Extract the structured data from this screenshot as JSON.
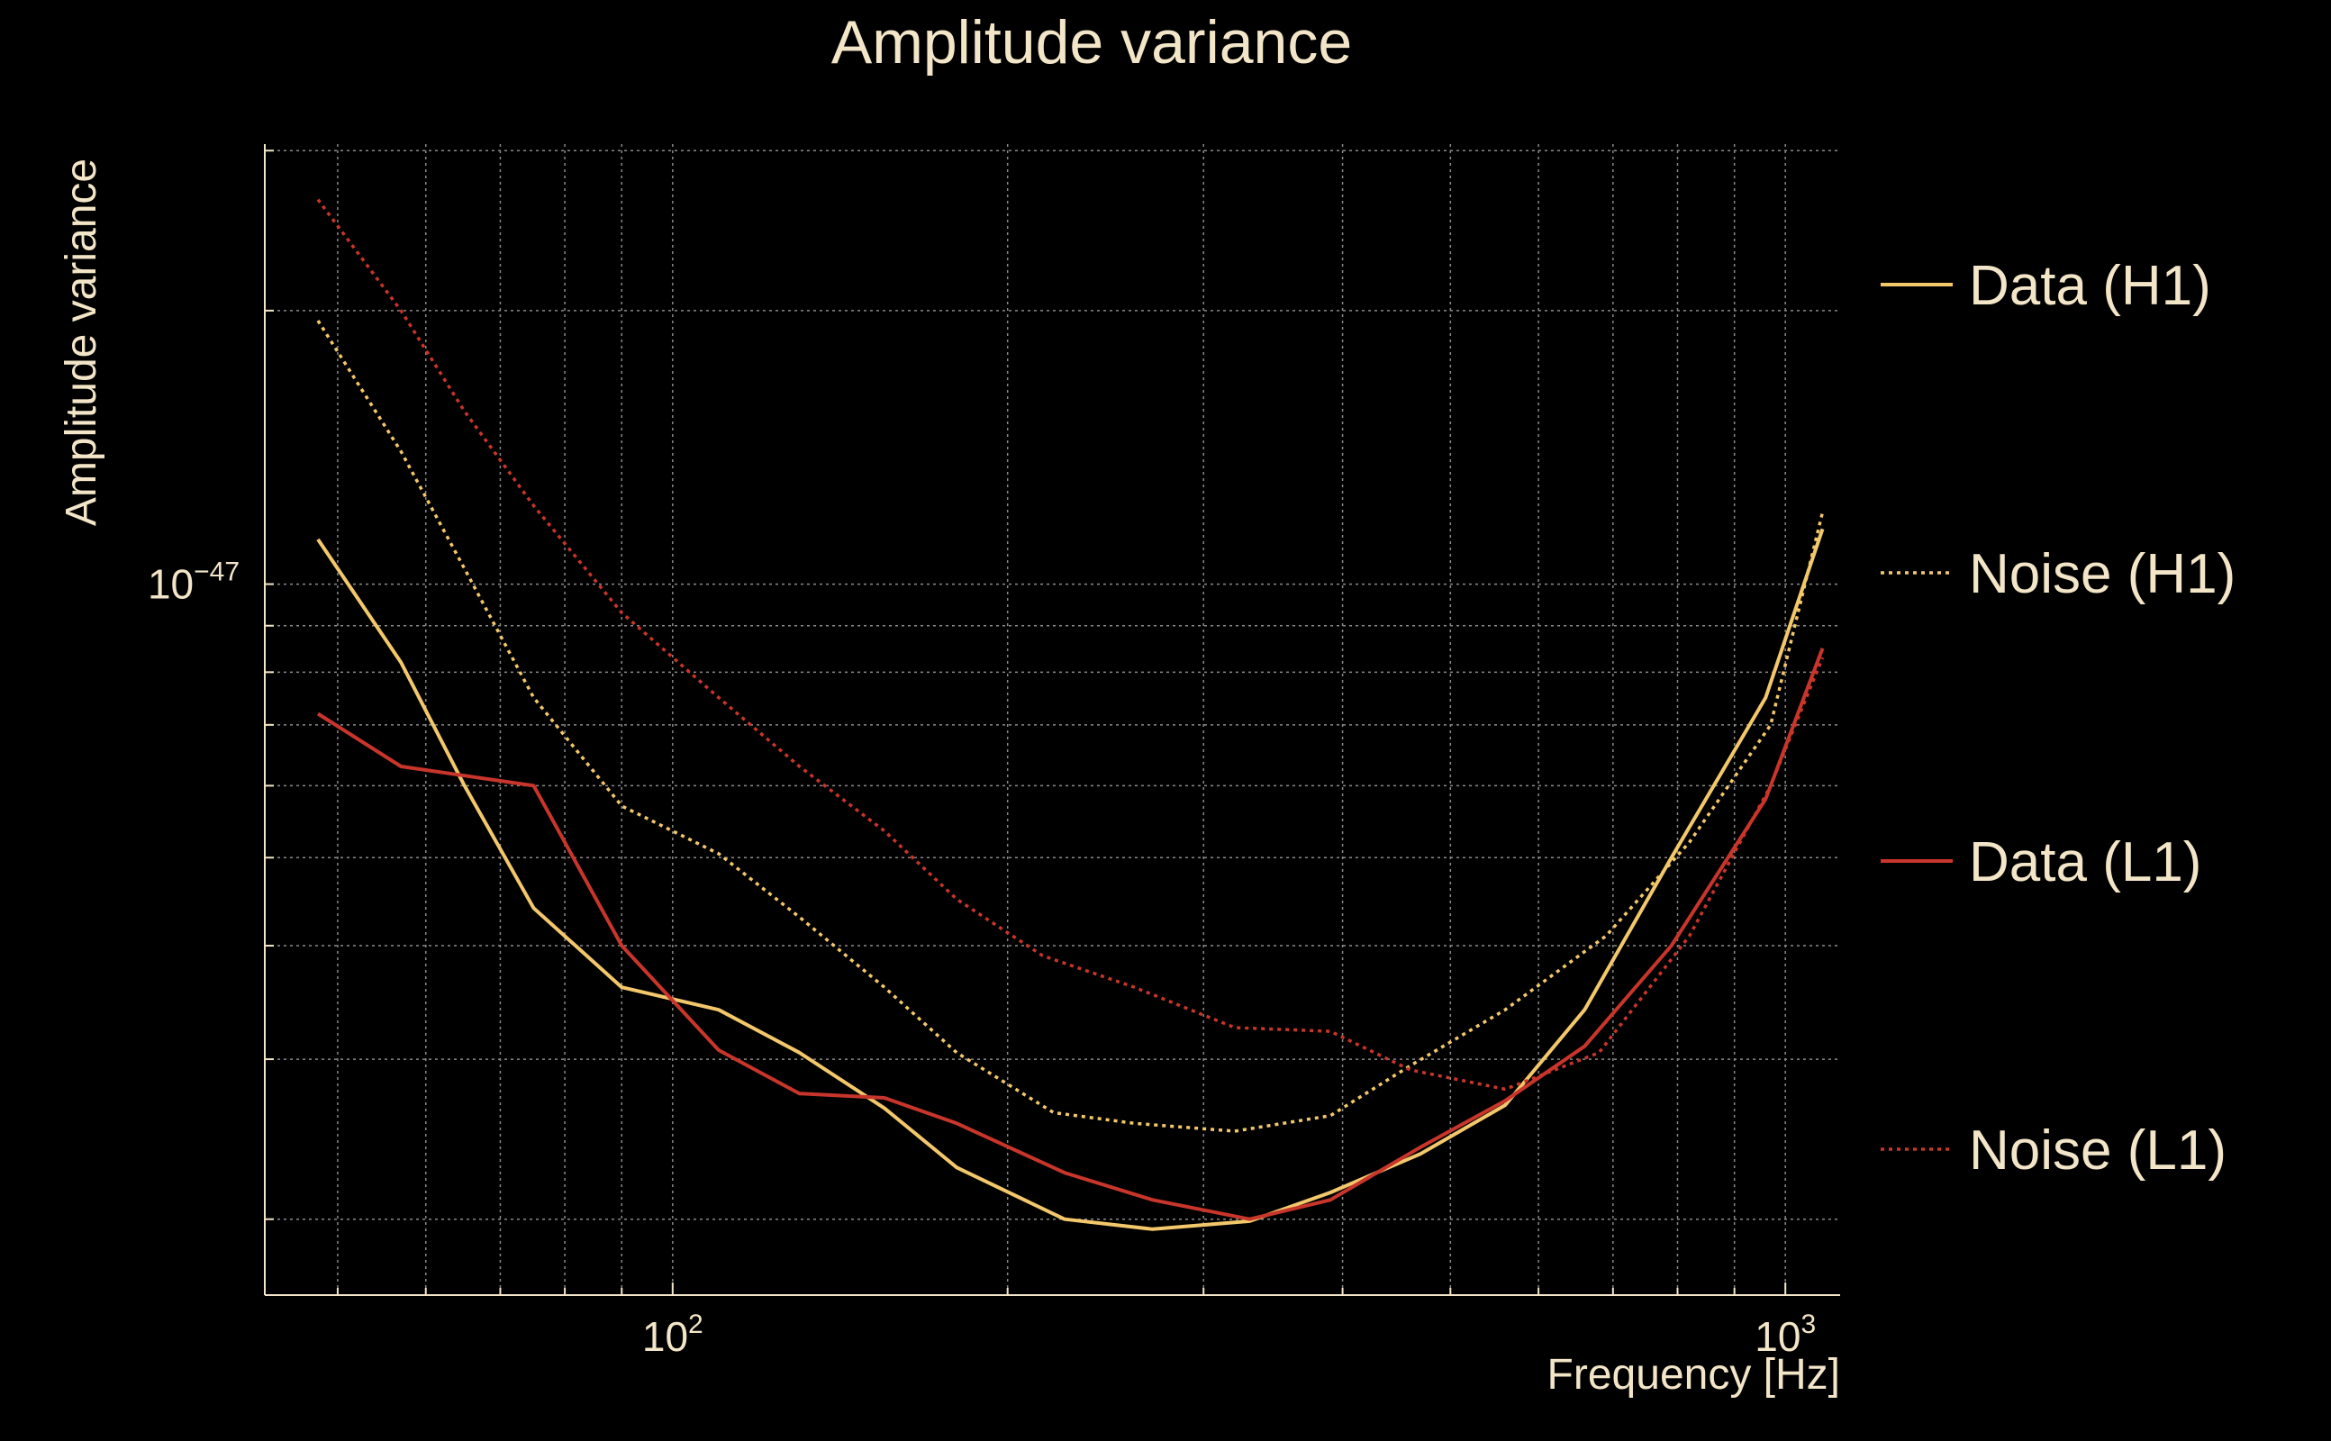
{
  "chart_data": {
    "type": "line",
    "title": "Amplitude variance",
    "xlabel": "Frequency [Hz]",
    "ylabel": "Amplitude variance",
    "xscale": "log",
    "yscale": "log",
    "xlim": [
      43,
      1120
    ],
    "ylim": [
      1.65e-48,
      3.05e-47
    ],
    "xticks": [
      {
        "base": "10",
        "exp": "2",
        "value": 100
      },
      {
        "base": "10",
        "exp": "3",
        "value": 1000
      }
    ],
    "yticks": [
      {
        "base": "10",
        "exp": "−47",
        "value": 1e-47
      }
    ],
    "grid": true,
    "legend_position": "right",
    "colors": {
      "background": "#000000",
      "text": "#f3e6c8",
      "grid": "#8a8a8a",
      "h1": "#f3c86b",
      "l1": "#c8352b"
    },
    "series": [
      {
        "name": "Data (H1)",
        "color": "#f3c86b",
        "dash": "solid",
        "x": [
          48,
          57,
          65,
          75,
          90,
          110,
          130,
          155,
          180,
          225,
          270,
          330,
          390,
          470,
          560,
          660,
          790,
          960,
          1080
        ],
        "y": [
          1.12e-47,
          8.2e-48,
          6e-48,
          4.4e-48,
          3.6e-48,
          3.4e-48,
          3.05e-48,
          2.65e-48,
          2.28e-48,
          2e-48,
          1.95e-48,
          1.99e-48,
          2.14e-48,
          2.36e-48,
          2.67e-48,
          3.4e-48,
          5e-48,
          7.5e-48,
          1.15e-47
        ]
      },
      {
        "name": "Noise (H1)",
        "color": "#f3c86b",
        "dash": "dotted",
        "x": [
          48,
          57,
          65,
          75,
          90,
          110,
          130,
          155,
          180,
          220,
          260,
          320,
          390,
          460,
          560,
          690,
          820,
          970,
          1080
        ],
        "y": [
          1.95e-47,
          1.4e-47,
          1.04e-47,
          7.5e-48,
          5.7e-48,
          5.05e-48,
          4.3e-48,
          3.6e-48,
          3.05e-48,
          2.62e-48,
          2.55e-48,
          2.5e-48,
          2.6e-48,
          2.95e-48,
          3.4e-48,
          4.1e-48,
          5.2e-48,
          7e-48,
          1.2e-47
        ]
      },
      {
        "name": "Data (L1)",
        "color": "#c8352b",
        "dash": "solid",
        "x": [
          48,
          57,
          75,
          90,
          110,
          130,
          155,
          180,
          225,
          270,
          330,
          390,
          470,
          560,
          660,
          790,
          960,
          1080
        ],
        "y": [
          7.2e-48,
          6.3e-48,
          6e-48,
          4e-48,
          3.07e-48,
          2.75e-48,
          2.72e-48,
          2.55e-48,
          2.25e-48,
          2.1e-48,
          2e-48,
          2.1e-48,
          2.4e-48,
          2.7e-48,
          3.1e-48,
          4e-48,
          5.8e-48,
          8.5e-48
        ]
      },
      {
        "name": "Noise (L1)",
        "color": "#c8352b",
        "dash": "dotted",
        "x": [
          48,
          57,
          65,
          75,
          90,
          110,
          130,
          155,
          180,
          215,
          260,
          320,
          390,
          460,
          560,
          680,
          820,
          970,
          1080
        ],
        "y": [
          2.65e-47,
          2e-47,
          1.55e-47,
          1.22e-47,
          9.3e-48,
          7.5e-48,
          6.3e-48,
          5.35e-48,
          4.5e-48,
          3.9e-48,
          3.6e-48,
          3.25e-48,
          3.22e-48,
          2.92e-48,
          2.78e-48,
          3.05e-48,
          4.1e-48,
          6e-48,
          8.3e-48
        ]
      }
    ]
  }
}
